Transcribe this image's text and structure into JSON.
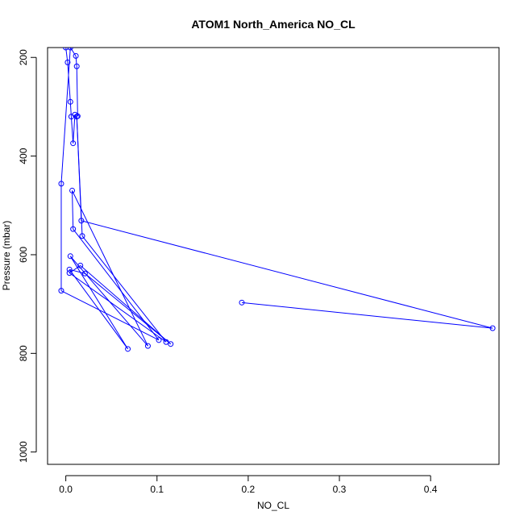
{
  "chart_data": {
    "type": "line",
    "title": "ATOM1 North_America NO_CL",
    "xlabel": "NO_CL",
    "ylabel": "Pressure (mbar)",
    "xlim": [
      -0.02,
      0.475
    ],
    "ylim": [
      1025,
      180
    ],
    "x_ticks": [
      0.0,
      0.1,
      0.2,
      0.3,
      0.4
    ],
    "x_tick_labels": [
      "0.0",
      "0.1",
      "0.2",
      "0.3",
      "0.4"
    ],
    "y_ticks": [
      200,
      400,
      600,
      800,
      1000
    ],
    "y_tick_labels": [
      "200",
      "400",
      "600",
      "800",
      "1000"
    ],
    "grid": false,
    "color": "#0000ff",
    "series": [
      {
        "points": [
          {
            "x": 0.0,
            "y": 180
          },
          {
            "x": 0.002,
            "y": 210
          },
          {
            "x": 0.005,
            "y": 290
          },
          {
            "x": 0.006,
            "y": 320
          },
          {
            "x": 0.008,
            "y": 374
          },
          {
            "x": 0.01,
            "y": 316
          },
          {
            "x": 0.013,
            "y": 319
          },
          {
            "x": 0.012,
            "y": 218
          },
          {
            "x": 0.011,
            "y": 197
          },
          {
            "x": 0.005,
            "y": 180
          },
          {
            "x": -0.005,
            "y": 456
          },
          {
            "x": -0.005,
            "y": 673
          },
          {
            "x": 0.102,
            "y": 773
          },
          {
            "x": 0.008,
            "y": 548
          },
          {
            "x": 0.007,
            "y": 470
          },
          {
            "x": 0.09,
            "y": 785
          },
          {
            "x": 0.005,
            "y": 603
          },
          {
            "x": 0.068,
            "y": 791
          },
          {
            "x": 0.004,
            "y": 630
          },
          {
            "x": 0.021,
            "y": 638
          },
          {
            "x": 0.115,
            "y": 781
          },
          {
            "x": 0.016,
            "y": 622
          },
          {
            "x": 0.004,
            "y": 637
          },
          {
            "x": 0.11,
            "y": 777
          },
          {
            "x": 0.018,
            "y": 562
          },
          {
            "x": 0.012,
            "y": 320
          },
          {
            "x": 0.017,
            "y": 531
          },
          {
            "x": 0.468,
            "y": 749
          },
          {
            "x": 0.193,
            "y": 697
          }
        ]
      }
    ]
  }
}
